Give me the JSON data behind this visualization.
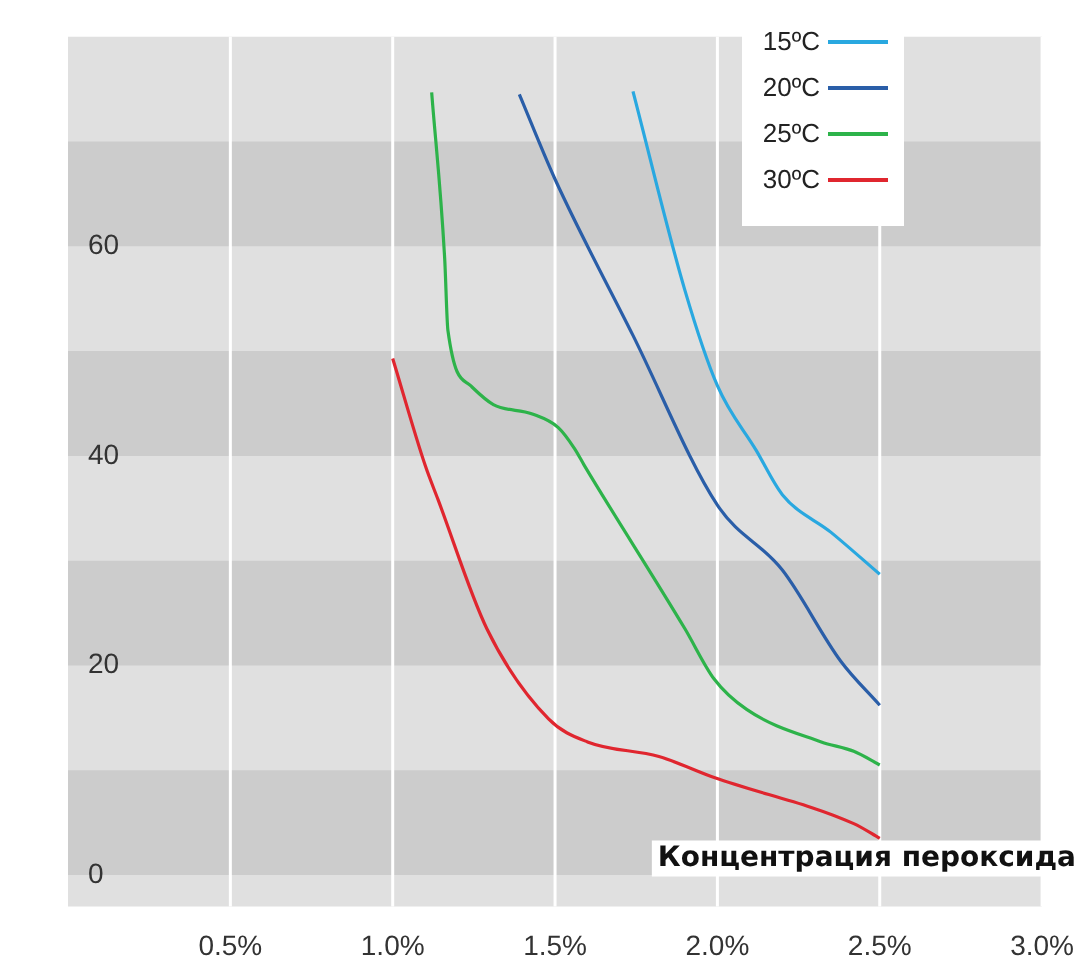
{
  "chart_data": {
    "type": "line",
    "xlabel": "Концентрация пероксида",
    "xlim": [
      0,
      3
    ],
    "xticks": [
      {
        "value": 0.5,
        "label": "0.5%"
      },
      {
        "value": 1,
        "label": "1.0%"
      },
      {
        "value": 1.5,
        "label": "1.5%"
      },
      {
        "value": 2,
        "label": "2.0%"
      },
      {
        "value": 2.5,
        "label": "2.5%"
      },
      {
        "value": 3,
        "label": "3.0%"
      }
    ],
    "ylim": [
      -3,
      80
    ],
    "yticks": [
      0,
      20,
      40,
      60
    ],
    "bands": [
      {
        "axis": "y",
        "from": 0,
        "to": 10,
        "color": "#cccccc"
      },
      {
        "axis": "y",
        "from": 20,
        "to": 30,
        "color": "#cccccc"
      },
      {
        "axis": "y",
        "from": 40,
        "to": 50,
        "color": "#cccccc"
      },
      {
        "axis": "y",
        "from": 60,
        "to": 70,
        "color": "#cccccc"
      }
    ],
    "grid": "x",
    "legend": "top right",
    "marker": "none",
    "line_style": "solid",
    "series": [
      {
        "name": "15ºC",
        "color": "#29a8e0",
        "x": [
          1.74,
          1.9,
          2.0,
          2.12,
          2.2,
          2.35,
          2.5
        ],
        "values": [
          74.8,
          55.8,
          46.7,
          40.5,
          36.3,
          32.7,
          28.7
        ]
      },
      {
        "name": "20ºC",
        "color": "#2a5ea8",
        "x": [
          1.39,
          1.5,
          1.74,
          2.0,
          2.2,
          2.38,
          2.5
        ],
        "values": [
          74.5,
          66.4,
          51.5,
          35.3,
          29.1,
          20.4,
          16.2
        ]
      },
      {
        "name": "25ºC",
        "color": "#2db34a",
        "x": [
          1.12,
          1.16,
          1.17,
          1.24,
          1.31,
          1.43,
          1.51,
          1.56,
          1.59,
          1.9,
          1.99,
          2.09,
          2.32,
          2.42,
          2.5
        ],
        "values": [
          74.7,
          58.9,
          52,
          46.7,
          44.9,
          44,
          42.7,
          40.7,
          39.1,
          23.5,
          18.7,
          15.8,
          12.7,
          11.8,
          10.5
        ]
      },
      {
        "name": "30ºC",
        "color": "#e0262f",
        "x": [
          1.0,
          1.1,
          1.14,
          1.29,
          1.48,
          1.6,
          1.82,
          1.99,
          2.42,
          2.5
        ],
        "values": [
          49.3,
          39.1,
          35.8,
          23.5,
          14.9,
          12.7,
          11.3,
          9.3,
          4.9,
          3.5
        ]
      }
    ]
  }
}
